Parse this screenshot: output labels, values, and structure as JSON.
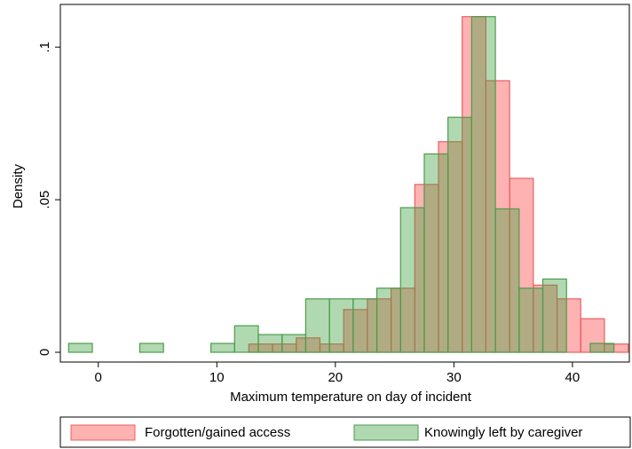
{
  "chart_data": {
    "type": "histogram",
    "xlabel": "Maximum temperature on day of incident",
    "ylabel": "Density",
    "xlim": [
      -3.2,
      44.8
    ],
    "ylim": [
      -0.0032,
      0.114
    ],
    "xticks": [
      0,
      10,
      20,
      30,
      40
    ],
    "yticks": [
      {
        "value": 0,
        "label": "0"
      },
      {
        "value": 0.05,
        "label": ".05"
      },
      {
        "value": 0.1,
        "label": ".1"
      }
    ],
    "legend": "bottom",
    "series": [
      {
        "name": "Forgotten/gained access",
        "color": "#ff0000",
        "edge": "#e86060",
        "bins": [
          12.7,
          14.7,
          16.7,
          18.7,
          20.7,
          22.7,
          24.7,
          26.7,
          28.7,
          30.7,
          32.7,
          34.7,
          36.7,
          38.7,
          40.7,
          42.7,
          44.7
        ],
        "values": [
          0.0027,
          0.0027,
          0.0047,
          0.0027,
          0.014,
          0.0175,
          0.021,
          0.055,
          0.069,
          0.11,
          0.089,
          0.057,
          0.022,
          0.0175,
          0.011,
          0.0027
        ]
      },
      {
        "name": "Knowingly left by caregiver",
        "color": "#3ca03c",
        "edge": "#4c9a4c",
        "bins": [
          -2.5,
          -0.5,
          1.5,
          3.5,
          5.5,
          7.5,
          9.5,
          11.5,
          13.5,
          15.5,
          17.5,
          19.5,
          21.5,
          23.5,
          25.5,
          27.5,
          29.5,
          31.5,
          33.5,
          35.5,
          37.5,
          39.5,
          41.5,
          43.5
        ],
        "values": [
          0.0029,
          0,
          0,
          0.0029,
          0,
          0,
          0.0029,
          0.0087,
          0.0058,
          0.0058,
          0.0175,
          0.0175,
          0.0175,
          0.021,
          0.0474,
          0.065,
          0.077,
          0.11,
          0.047,
          0.021,
          0.024,
          0,
          0.0029
        ]
      }
    ]
  }
}
